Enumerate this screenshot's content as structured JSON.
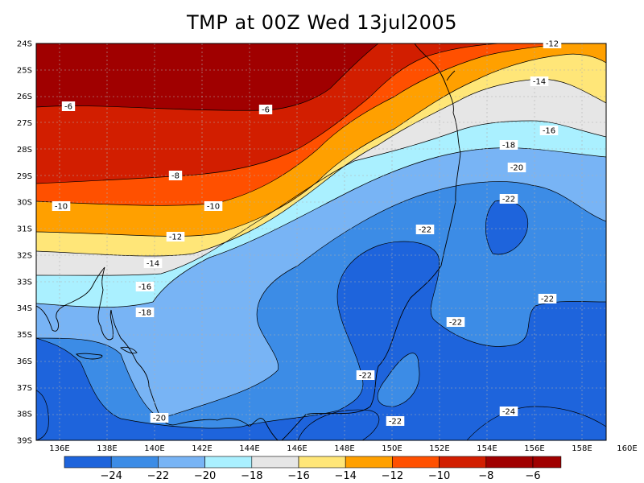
{
  "title": "TMP at 00Z Wed 13jul2005",
  "colors": {
    "c24": "#1e64dc",
    "c22": "#3c8ce6",
    "c20": "#78b4f5",
    "c18": "#aaf0ff",
    "c16": "#e6e6e6",
    "c14": "#ffe678",
    "c12": "#ffa000",
    "c10": "#ff5000",
    "c8": "#d21e00",
    "c6": "#a00000"
  },
  "lat_labels": [
    "24S",
    "25S",
    "26S",
    "27S",
    "28S",
    "29S",
    "30S",
    "31S",
    "32S",
    "33S",
    "34S",
    "35S",
    "36S",
    "37S",
    "38S",
    "39S"
  ],
  "lon_labels": [
    "136E",
    "138E",
    "140E",
    "142E",
    "144E",
    "146E",
    "148E",
    "150E",
    "152E",
    "154E",
    "156E",
    "158E",
    "160E"
  ],
  "contour_labels": [
    {
      "name": "lbl-m6-a",
      "text": "-6"
    },
    {
      "name": "lbl-m6-b",
      "text": "-6"
    },
    {
      "name": "lbl-m8",
      "text": "-8"
    },
    {
      "name": "lbl-m10-a",
      "text": "-10"
    },
    {
      "name": "lbl-m10-b",
      "text": "-10"
    },
    {
      "name": "lbl-m12-a",
      "text": "-12"
    },
    {
      "name": "lbl-m12-b",
      "text": "-12"
    },
    {
      "name": "lbl-m14-a",
      "text": "-14"
    },
    {
      "name": "lbl-m14-b",
      "text": "-14"
    },
    {
      "name": "lbl-m16-a",
      "text": "-16"
    },
    {
      "name": "lbl-m16-b",
      "text": "-16"
    },
    {
      "name": "lbl-m18-a",
      "text": "-18"
    },
    {
      "name": "lbl-m18-b",
      "text": "-18"
    },
    {
      "name": "lbl-m20-a",
      "text": "-20"
    },
    {
      "name": "lbl-m20-b",
      "text": "-20"
    },
    {
      "name": "lbl-m22-a",
      "text": "-22"
    },
    {
      "name": "lbl-m22-b",
      "text": "-22"
    },
    {
      "name": "lbl-m22-c",
      "text": "-22"
    },
    {
      "name": "lbl-m22-d",
      "text": "-22"
    },
    {
      "name": "lbl-m22-e",
      "text": "-22"
    },
    {
      "name": "lbl-m22-f",
      "text": "-22"
    },
    {
      "name": "lbl-m24",
      "text": "-24"
    }
  ],
  "colorbar": {
    "labels": [
      "−24",
      "−22",
      "−20",
      "−18",
      "−16",
      "−14",
      "−12",
      "−10",
      "−8",
      "−6"
    ]
  }
}
